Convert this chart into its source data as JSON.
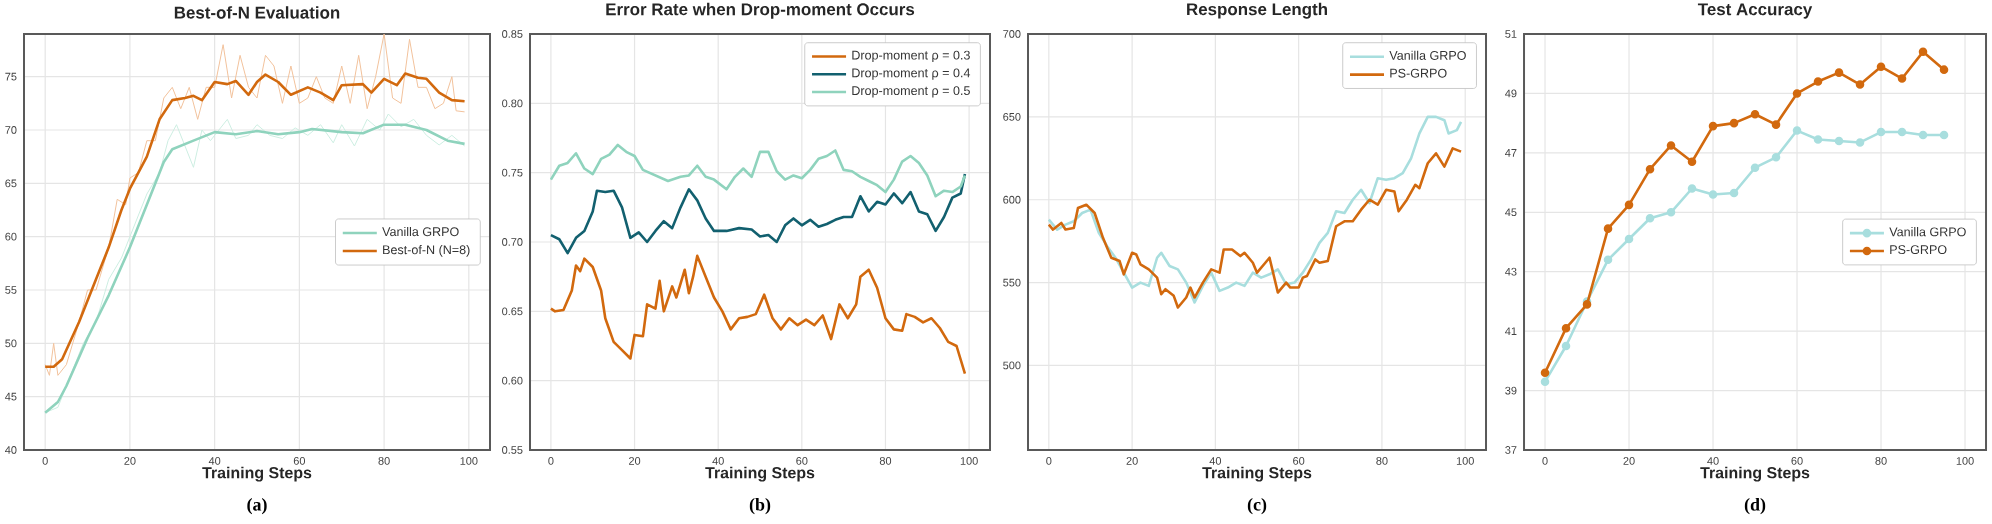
{
  "chart_data": [
    {
      "type": "line",
      "title": "Best-of-N Evaluation",
      "xlabel": "Training Steps",
      "annotations": [
        "(a)"
      ],
      "xlim": [
        -5,
        105
      ],
      "ylim": [
        40,
        79
      ],
      "xticks": [
        0,
        20,
        40,
        60,
        80,
        100
      ],
      "yticks": [
        40,
        45,
        50,
        55,
        60,
        65,
        70,
        75
      ],
      "grid": true,
      "legend": "center right",
      "series": [
        {
          "color": "#cdeee2",
          "x": [
            0,
            3,
            6,
            9,
            12,
            15,
            18,
            20,
            24,
            27,
            29,
            31,
            33,
            35,
            37,
            39,
            41,
            43,
            45,
            48,
            50,
            53,
            56,
            59,
            62,
            65,
            68,
            70,
            73,
            76,
            79,
            81,
            84,
            87,
            90,
            93,
            96,
            99
          ],
          "values": [
            43.5,
            44,
            47,
            50,
            52,
            56,
            58,
            60,
            64,
            66,
            69,
            70.5,
            68.5,
            66.5,
            70,
            69,
            70,
            71,
            69.2,
            69.5,
            70.5,
            69.5,
            69.2,
            70.2,
            69.5,
            70.5,
            68.8,
            70.5,
            68.5,
            71,
            70,
            71.5,
            70.3,
            71,
            69.5,
            68.6,
            69.5,
            68.5
          ]
        },
        {
          "color": "#f2c29c",
          "x": [
            0,
            1,
            2,
            3,
            5,
            8,
            10,
            12,
            15,
            17,
            19,
            20,
            22,
            24,
            26,
            28,
            30,
            32,
            34,
            36,
            38,
            40,
            42,
            44,
            46,
            48,
            50,
            52,
            54,
            56,
            58,
            60,
            62,
            64,
            66,
            68,
            70,
            72,
            74,
            76,
            78,
            80,
            82,
            84,
            86,
            88,
            90,
            92,
            94,
            96,
            97,
            99
          ],
          "values": [
            48,
            47,
            50,
            47,
            48,
            52,
            55,
            55,
            59,
            63.5,
            63,
            65.5,
            66,
            69,
            69,
            73,
            74,
            72,
            74,
            71,
            74,
            74,
            78,
            73,
            77,
            74,
            73,
            77,
            76,
            72.5,
            76,
            72.5,
            73,
            75,
            73,
            72.5,
            76,
            72.5,
            77,
            72,
            75,
            79,
            73,
            72.5,
            78.5,
            74,
            74,
            72,
            72.5,
            75,
            71.8,
            71.7
          ]
        },
        {
          "name": "Vanilla GRPO",
          "color": "#8fd3bd",
          "x": [
            0,
            3,
            5,
            10,
            15,
            20,
            25,
            28,
            30,
            35,
            40,
            45,
            50,
            55,
            60,
            63,
            70,
            75,
            80,
            85,
            90,
            95,
            99
          ],
          "values": [
            43.5,
            44.5,
            46,
            50.5,
            54.5,
            59,
            64,
            67,
            68.2,
            69,
            69.8,
            69.6,
            69.9,
            69.6,
            69.8,
            70.1,
            69.8,
            69.7,
            70.5,
            70.5,
            70,
            69,
            68.7
          ]
        },
        {
          "name": "Best-of-N (N=8)",
          "color": "#d2690e",
          "x": [
            0,
            2,
            4,
            8,
            12,
            15,
            18,
            20,
            24,
            27,
            30,
            33,
            35,
            37,
            40,
            43,
            45,
            48,
            50,
            52,
            55,
            58,
            62,
            65,
            68,
            70,
            75,
            77,
            80,
            83,
            85,
            88,
            90,
            93,
            96,
            99
          ],
          "values": [
            47.8,
            47.8,
            48.5,
            52,
            56,
            59,
            62.5,
            64.5,
            67.5,
            71,
            72.8,
            73,
            73.2,
            72.8,
            74.5,
            74.3,
            74.6,
            73.3,
            74.5,
            75.2,
            74.5,
            73.3,
            74,
            73.5,
            72.8,
            74.2,
            74.3,
            73.5,
            74.8,
            74.2,
            75.3,
            74.9,
            74.8,
            73.5,
            72.8,
            72.7
          ]
        }
      ]
    },
    {
      "type": "line",
      "title": "Error Rate when Drop-moment Occurs",
      "xlabel": "Training Steps",
      "annotations": [
        "(b)"
      ],
      "xlim": [
        -5,
        105
      ],
      "ylim": [
        0.55,
        0.85
      ],
      "xticks": [
        0,
        20,
        40,
        60,
        80,
        100
      ],
      "yticks": [
        {
          "value": 0.55,
          "label": "0.55"
        },
        {
          "value": 0.6,
          "label": "0.60"
        },
        {
          "value": 0.65,
          "label": "0.65"
        },
        {
          "value": 0.7,
          "label": "0.70"
        },
        {
          "value": 0.75,
          "label": "0.75"
        },
        {
          "value": 0.8,
          "label": "0.80"
        },
        {
          "value": 0.85,
          "label": "0.85"
        }
      ],
      "grid": true,
      "legend": "top right",
      "series": [
        {
          "name": "Drop-moment ρ = 0.3",
          "color": "#d2690e",
          "x": [
            0,
            1,
            3,
            5,
            6,
            7,
            8,
            10,
            12,
            13,
            15,
            17,
            19,
            20,
            22,
            23,
            25,
            26,
            27,
            29,
            30,
            31,
            32,
            33,
            34,
            35,
            37,
            39,
            41,
            43,
            45,
            47,
            49,
            51,
            53,
            55,
            57,
            59,
            61,
            63,
            65,
            67,
            69,
            71,
            73,
            74,
            76,
            78,
            80,
            82,
            84,
            85,
            87,
            89,
            91,
            93,
            95,
            97,
            99
          ],
          "values": [
            0.652,
            0.65,
            0.651,
            0.665,
            0.683,
            0.679,
            0.688,
            0.682,
            0.665,
            0.645,
            0.628,
            0.622,
            0.616,
            0.633,
            0.632,
            0.655,
            0.652,
            0.672,
            0.65,
            0.668,
            0.66,
            0.67,
            0.68,
            0.663,
            0.675,
            0.69,
            0.675,
            0.66,
            0.65,
            0.637,
            0.645,
            0.646,
            0.648,
            0.662,
            0.645,
            0.637,
            0.645,
            0.64,
            0.644,
            0.64,
            0.647,
            0.63,
            0.655,
            0.645,
            0.655,
            0.675,
            0.68,
            0.667,
            0.645,
            0.637,
            0.636,
            0.648,
            0.646,
            0.642,
            0.645,
            0.638,
            0.628,
            0.625,
            0.605
          ]
        },
        {
          "name": "Drop-moment ρ = 0.4",
          "color": "#12606f",
          "x": [
            0,
            2,
            4,
            6,
            8,
            10,
            11,
            13,
            15,
            17,
            19,
            21,
            23,
            25,
            27,
            29,
            31,
            33,
            35,
            37,
            39,
            42,
            45,
            48,
            50,
            52,
            54,
            56,
            58,
            60,
            62,
            64,
            66,
            68,
            70,
            72,
            74,
            76,
            78,
            80,
            82,
            84,
            86,
            88,
            90,
            92,
            94,
            96,
            98,
            99
          ],
          "values": [
            0.705,
            0.702,
            0.692,
            0.703,
            0.708,
            0.722,
            0.737,
            0.736,
            0.737,
            0.725,
            0.703,
            0.707,
            0.7,
            0.708,
            0.715,
            0.71,
            0.725,
            0.738,
            0.73,
            0.717,
            0.708,
            0.708,
            0.71,
            0.709,
            0.704,
            0.705,
            0.7,
            0.712,
            0.717,
            0.712,
            0.716,
            0.711,
            0.713,
            0.716,
            0.718,
            0.718,
            0.733,
            0.722,
            0.729,
            0.727,
            0.735,
            0.728,
            0.736,
            0.722,
            0.72,
            0.708,
            0.718,
            0.732,
            0.735,
            0.749
          ]
        },
        {
          "name": "Drop-moment ρ = 0.5",
          "color": "#8fd3bd",
          "x": [
            0,
            2,
            4,
            6,
            8,
            10,
            12,
            14,
            16,
            18,
            20,
            22,
            25,
            28,
            31,
            33,
            35,
            37,
            39,
            42,
            44,
            46,
            48,
            50,
            52,
            54,
            56,
            58,
            60,
            62,
            64,
            66,
            68,
            70,
            72,
            74,
            76,
            78,
            80,
            82,
            84,
            86,
            88,
            90,
            92,
            94,
            96,
            98,
            99
          ],
          "values": [
            0.745,
            0.755,
            0.757,
            0.764,
            0.753,
            0.749,
            0.76,
            0.763,
            0.77,
            0.765,
            0.762,
            0.752,
            0.748,
            0.744,
            0.747,
            0.748,
            0.755,
            0.747,
            0.745,
            0.738,
            0.747,
            0.753,
            0.747,
            0.765,
            0.765,
            0.751,
            0.745,
            0.748,
            0.746,
            0.752,
            0.76,
            0.762,
            0.766,
            0.752,
            0.751,
            0.747,
            0.744,
            0.741,
            0.736,
            0.745,
            0.758,
            0.762,
            0.757,
            0.748,
            0.733,
            0.737,
            0.736,
            0.74,
            0.748
          ]
        }
      ]
    },
    {
      "type": "line",
      "title": "Response Length",
      "xlabel": "Training Steps",
      "annotations": [
        "(c)"
      ],
      "xlim": [
        -5,
        105
      ],
      "ylim": [
        449,
        700
      ],
      "xticks": [
        0,
        20,
        40,
        60,
        80,
        100
      ],
      "yticks": [
        500,
        550,
        600,
        650,
        700
      ],
      "grid": true,
      "legend": "top right",
      "series": [
        {
          "name": "Vanilla GRPO",
          "color": "#a8dede",
          "x": [
            0,
            2,
            4,
            6,
            8,
            10,
            12,
            14,
            16,
            18,
            20,
            22,
            24,
            26,
            27,
            29,
            31,
            33,
            35,
            37,
            39,
            41,
            43,
            45,
            47,
            49,
            51,
            53,
            55,
            57,
            59,
            61,
            63,
            65,
            67,
            69,
            71,
            73,
            75,
            77,
            79,
            81,
            83,
            85,
            87,
            89,
            91,
            93,
            95,
            96,
            98,
            99
          ],
          "values": [
            588,
            582,
            585,
            587,
            592,
            594,
            580,
            572,
            565,
            556,
            547,
            550,
            548,
            565,
            568,
            560,
            558,
            550,
            538,
            548,
            556,
            545,
            547,
            550,
            548,
            556,
            553,
            555,
            558,
            549,
            550,
            556,
            564,
            574,
            580,
            593,
            592,
            600,
            606,
            598,
            613,
            612,
            613,
            616,
            625,
            640,
            650,
            650,
            648,
            640,
            642,
            647
          ]
        },
        {
          "name": "PS-GRPO",
          "color": "#d2690e",
          "x": [
            0,
            1,
            3,
            4,
            6,
            7,
            9,
            11,
            13,
            15,
            17,
            18,
            20,
            21,
            22,
            24,
            26,
            27,
            28,
            30,
            31,
            33,
            34,
            35,
            37,
            39,
            41,
            42,
            44,
            46,
            47,
            49,
            50,
            52,
            53,
            55,
            57,
            58,
            60,
            61,
            62,
            64,
            65,
            67,
            69,
            71,
            73,
            75,
            77,
            79,
            81,
            83,
            84,
            86,
            88,
            89,
            91,
            93,
            95,
            97,
            99
          ],
          "values": [
            585,
            582,
            586,
            582,
            583,
            595,
            597,
            592,
            577,
            565,
            563,
            555,
            568,
            567,
            561,
            558,
            553,
            543,
            546,
            542,
            535,
            541,
            547,
            541,
            550,
            558,
            556,
            570,
            570,
            566,
            568,
            562,
            556,
            562,
            565,
            544,
            550,
            547,
            547,
            553,
            554,
            564,
            562,
            563,
            584,
            587,
            587,
            594,
            600,
            597,
            606,
            605,
            593,
            600,
            609,
            607,
            622,
            628,
            620,
            631,
            629
          ]
        }
      ]
    },
    {
      "type": "line",
      "title": "Test Accuracy",
      "xlabel": "Training Steps",
      "annotations": [
        "(d)"
      ],
      "xlim": [
        -5,
        105
      ],
      "ylim": [
        37,
        51
      ],
      "xticks": [
        0,
        20,
        40,
        60,
        80,
        100
      ],
      "yticks": [
        37,
        39,
        41,
        43,
        45,
        47,
        49,
        51
      ],
      "grid": true,
      "legend": "center right",
      "marker": "circle",
      "series": [
        {
          "name": "Vanilla GRPO",
          "color": "#a8dede",
          "x": [
            0,
            5,
            10,
            15,
            20,
            25,
            30,
            35,
            40,
            45,
            50,
            55,
            60,
            65,
            70,
            75,
            80,
            85,
            90,
            95
          ],
          "values": [
            39.3,
            40.5,
            42.0,
            43.4,
            44.1,
            44.8,
            45.0,
            45.8,
            45.6,
            45.65,
            46.5,
            46.85,
            47.75,
            47.45,
            47.4,
            47.35,
            47.7,
            47.7,
            47.6,
            47.6
          ]
        },
        {
          "name": "PS-GRPO",
          "color": "#d2690e",
          "x": [
            0,
            5,
            10,
            15,
            20,
            25,
            30,
            35,
            40,
            45,
            50,
            55,
            60,
            65,
            70,
            75,
            80,
            85,
            90,
            95
          ],
          "values": [
            39.6,
            41.1,
            41.9,
            44.45,
            45.25,
            46.45,
            47.25,
            46.7,
            47.9,
            48.0,
            48.3,
            47.95,
            49.0,
            49.4,
            49.7,
            49.3,
            49.9,
            49.5,
            50.4,
            49.8
          ]
        }
      ]
    }
  ]
}
